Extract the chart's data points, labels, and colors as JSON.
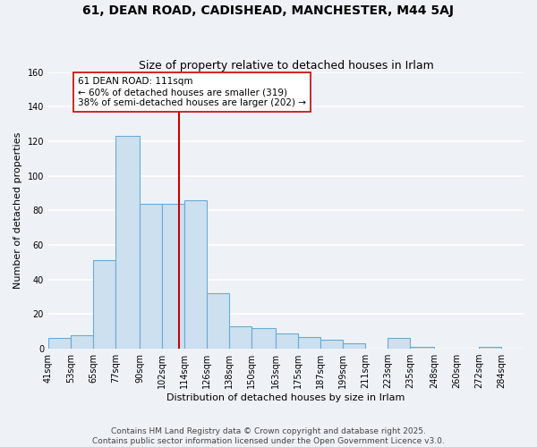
{
  "title_line1": "61, DEAN ROAD, CADISHEAD, MANCHESTER, M44 5AJ",
  "title_line2": "Size of property relative to detached houses in Irlam",
  "xlabel": "Distribution of detached houses by size in Irlam",
  "ylabel": "Number of detached properties",
  "bar_color": "#cce0f0",
  "bar_edge_color": "#6aaad4",
  "bin_labels": [
    "41sqm",
    "53sqm",
    "65sqm",
    "77sqm",
    "90sqm",
    "102sqm",
    "114sqm",
    "126sqm",
    "138sqm",
    "150sqm",
    "163sqm",
    "175sqm",
    "187sqm",
    "199sqm",
    "211sqm",
    "223sqm",
    "235sqm",
    "248sqm",
    "260sqm",
    "272sqm",
    "284sqm"
  ],
  "bin_edges": [
    41,
    53,
    65,
    77,
    90,
    102,
    114,
    126,
    138,
    150,
    163,
    175,
    187,
    199,
    211,
    223,
    235,
    248,
    260,
    272,
    284,
    296
  ],
  "counts": [
    6,
    8,
    51,
    123,
    84,
    84,
    86,
    32,
    13,
    12,
    9,
    7,
    5,
    3,
    0,
    6,
    1,
    0,
    0,
    1,
    0
  ],
  "property_size": 111,
  "vline_color": "#cc0000",
  "annotation_line1": "61 DEAN ROAD: 111sqm",
  "annotation_line2": "← 60% of detached houses are smaller (319)",
  "annotation_line3": "38% of semi-detached houses are larger (202) →",
  "annotation_box_color": "#ffffff",
  "annotation_box_edge_color": "#cc0000",
  "ylim": [
    0,
    160
  ],
  "yticks": [
    0,
    20,
    40,
    60,
    80,
    100,
    120,
    140,
    160
  ],
  "footnote_line1": "Contains HM Land Registry data © Crown copyright and database right 2025.",
  "footnote_line2": "Contains public sector information licensed under the Open Government Licence v3.0.",
  "background_color": "#eef2f7",
  "plot_bg_color": "#eef2f7",
  "grid_color": "#ffffff",
  "title_fontsize": 10,
  "subtitle_fontsize": 9,
  "axis_label_fontsize": 8,
  "tick_fontsize": 7,
  "annotation_fontsize": 7.5,
  "footnote_fontsize": 6.5
}
